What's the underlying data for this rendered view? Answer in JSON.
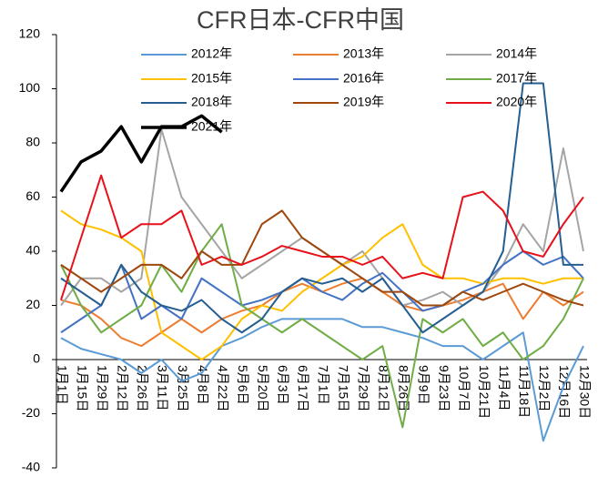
{
  "chart_data": {
    "type": "line",
    "title": "CFR日本-CFR中国",
    "categories": [
      "1月1日",
      "1月15日",
      "1月29日",
      "2月12日",
      "2月26日",
      "3月11日",
      "3月25日",
      "4月8日",
      "4月22日",
      "5月6日",
      "5月20日",
      "6月3日",
      "6月17日",
      "7月1日",
      "7月15日",
      "7月29日",
      "8月12日",
      "8月26日",
      "9月9日",
      "9月23日",
      "10月7日",
      "10月21日",
      "11月4日",
      "11月18日",
      "12月2日",
      "12月16日",
      "12月30日"
    ],
    "ylim": [
      -40,
      120
    ],
    "yticks": [
      -40,
      -20,
      0,
      20,
      40,
      60,
      80,
      100,
      120
    ],
    "series": [
      {
        "name": "2012年",
        "color": "#5b9bd5",
        "width": 2,
        "values": [
          8,
          4,
          2,
          0,
          -5,
          0,
          -8,
          -5,
          5,
          8,
          12,
          15,
          15,
          15,
          15,
          12,
          12,
          10,
          8,
          5,
          5,
          0,
          5,
          10,
          -30,
          -10,
          5
        ]
      },
      {
        "name": "2013年",
        "color": "#ed7d31",
        "width": 2,
        "values": [
          22,
          20,
          15,
          8,
          5,
          10,
          15,
          10,
          15,
          18,
          20,
          25,
          28,
          25,
          28,
          30,
          25,
          20,
          18,
          20,
          22,
          25,
          28,
          15,
          25,
          20,
          25
        ]
      },
      {
        "name": "2014年",
        "color": "#a5a5a5",
        "width": 2,
        "values": [
          20,
          30,
          30,
          25,
          30,
          85,
          60,
          50,
          40,
          30,
          35,
          40,
          45,
          40,
          35,
          40,
          30,
          20,
          22,
          25,
          20,
          25,
          35,
          50,
          40,
          78,
          40
        ]
      },
      {
        "name": "2015年",
        "color": "#ffc000",
        "width": 2,
        "values": [
          55,
          50,
          48,
          45,
          40,
          10,
          5,
          0,
          5,
          15,
          20,
          18,
          25,
          30,
          35,
          38,
          45,
          50,
          35,
          30,
          30,
          28,
          30,
          30,
          28,
          30,
          30
        ]
      },
      {
        "name": "2016年",
        "color": "#4472c4",
        "width": 2,
        "values": [
          10,
          15,
          20,
          35,
          15,
          20,
          15,
          30,
          25,
          20,
          22,
          25,
          30,
          25,
          22,
          28,
          32,
          25,
          18,
          20,
          25,
          28,
          35,
          40,
          35,
          38,
          30
        ]
      },
      {
        "name": "2017年",
        "color": "#70ad47",
        "width": 2,
        "values": [
          35,
          20,
          10,
          15,
          20,
          35,
          25,
          40,
          50,
          20,
          15,
          10,
          15,
          10,
          5,
          0,
          5,
          -25,
          15,
          10,
          15,
          5,
          10,
          0,
          5,
          15,
          30
        ]
      },
      {
        "name": "2018年",
        "color": "#255e91",
        "width": 2,
        "values": [
          30,
          25,
          20,
          35,
          25,
          20,
          18,
          22,
          15,
          10,
          15,
          25,
          30,
          28,
          30,
          25,
          30,
          20,
          10,
          15,
          20,
          25,
          40,
          102,
          102,
          35,
          35
        ]
      },
      {
        "name": "2019年",
        "color": "#9e480e",
        "width": 2,
        "values": [
          35,
          30,
          25,
          30,
          35,
          35,
          30,
          40,
          35,
          35,
          50,
          55,
          45,
          40,
          35,
          30,
          25,
          25,
          20,
          20,
          25,
          22,
          25,
          28,
          25,
          22,
          20
        ]
      },
      {
        "name": "2020年",
        "color": "#e8101a",
        "width": 2,
        "values": [
          22,
          45,
          68,
          45,
          50,
          50,
          55,
          35,
          38,
          35,
          38,
          42,
          40,
          38,
          38,
          35,
          38,
          30,
          32,
          30,
          60,
          62,
          55,
          40,
          38,
          50,
          60
        ]
      },
      {
        "name": "2021年",
        "color": "#000000",
        "width": 3.5,
        "values": [
          62,
          73,
          77,
          86,
          73,
          86,
          86,
          90,
          84,
          null,
          null,
          null,
          null,
          null,
          null,
          null,
          null,
          null,
          null,
          null,
          null,
          null,
          null,
          null,
          null,
          null,
          null
        ]
      }
    ]
  }
}
